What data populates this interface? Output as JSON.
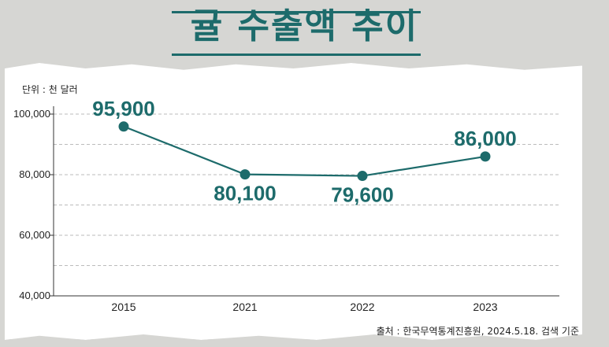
{
  "header": {
    "title": "귤 수출액 추이"
  },
  "unit_label": "단위 : 천 달러",
  "source_label": "출처 : 한국무역통계진흥원, 2024.5.18. 검색 기준",
  "colors": {
    "accent": "#1d6b6b",
    "grid": "#bbbbbb",
    "axis": "#333333"
  },
  "chart_data": {
    "type": "line",
    "title": "귤 수출액 추이",
    "xlabel": "",
    "ylabel": "",
    "categories": [
      "2015",
      "2021",
      "2022",
      "2023"
    ],
    "series": [
      {
        "values": [
          95900,
          80100,
          79600,
          86000
        ]
      }
    ],
    "data_labels": [
      "95,900",
      "80,100",
      "79,600",
      "86,000"
    ],
    "ylim": [
      40000,
      100000
    ],
    "yticks": [
      40000,
      60000,
      80000,
      100000
    ],
    "ytick_labels": [
      "40,000",
      "60,000",
      "80,000",
      "100,000"
    ],
    "grid": true
  }
}
